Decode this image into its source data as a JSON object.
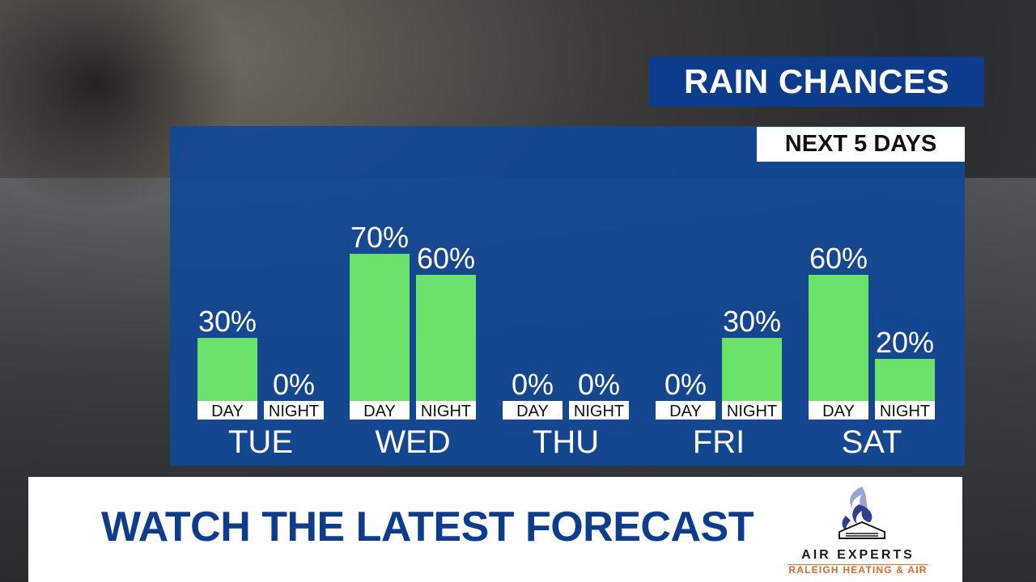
{
  "header": {
    "title": "RAIN CHANCES",
    "subtitle": "NEXT 5 DAYS"
  },
  "banner": {
    "text": "WATCH THE LATEST FORECAST"
  },
  "sponsor": {
    "name": "AIR EXPERTS",
    "tagline": "RALEIGH HEATING & AIR"
  },
  "colors": {
    "bar": "#6be36a",
    "panel": "#1248a0",
    "title_bg": "#0d3c8c",
    "banner_text": "#0d3c8c",
    "sponsor_tagline": "#e0652a"
  },
  "chart_data": {
    "type": "bar",
    "title": "RAIN CHANCES",
    "subtitle": "NEXT 5 DAYS",
    "unit": "%",
    "ylim": [
      0,
      100
    ],
    "grid": false,
    "categories": [
      "TUE",
      "WED",
      "THU",
      "FRI",
      "SAT"
    ],
    "series": [
      {
        "name": "DAY",
        "values": [
          30,
          70,
          0,
          0,
          60
        ]
      },
      {
        "name": "NIGHT",
        "values": [
          0,
          60,
          0,
          30,
          20
        ]
      }
    ],
    "value_labels": {
      "DAY": [
        "30%",
        "70%",
        "0%",
        "0%",
        "60%"
      ],
      "NIGHT": [
        "0%",
        "60%",
        "0%",
        "30%",
        "20%"
      ]
    }
  }
}
